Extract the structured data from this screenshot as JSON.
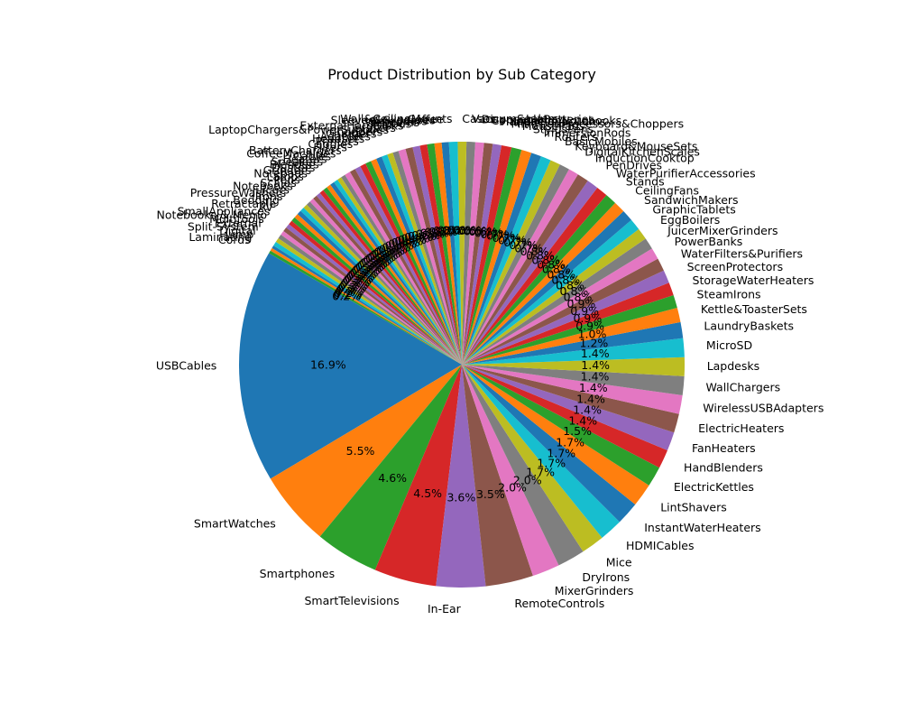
{
  "chart_data": {
    "type": "pie",
    "title": "Product Distribution by Sub Category",
    "start_angle_deg": 150,
    "counterclockwise": true,
    "pct_format": "%1.1f%%",
    "palette": [
      "#1f77b4",
      "#ff7f0e",
      "#2ca02c",
      "#d62728",
      "#9467bd",
      "#8c564b",
      "#e377c2",
      "#7f7f7f",
      "#bcbd22",
      "#17becf"
    ],
    "slices": [
      {
        "label": "USBCables",
        "value": 161
      },
      {
        "label": "SmartWatches",
        "value": 52
      },
      {
        "label": "Smartphones",
        "value": 44
      },
      {
        "label": "SmartTelevisions",
        "value": 43
      },
      {
        "label": "In-Ear",
        "value": 34
      },
      {
        "label": "RemoteControls",
        "value": 33
      },
      {
        "label": "MixerGrinders",
        "value": 19
      },
      {
        "label": "DryIrons",
        "value": 19
      },
      {
        "label": "Mice",
        "value": 16
      },
      {
        "label": "HDMICables",
        "value": 16
      },
      {
        "label": "InstantWaterHeaters",
        "value": 16
      },
      {
        "label": "LintShavers",
        "value": 16
      },
      {
        "label": "ElectricKettles",
        "value": 14
      },
      {
        "label": "HandBlenders",
        "value": 13
      },
      {
        "label": "FanHeaters",
        "value": 13
      },
      {
        "label": "ElectricHeaters",
        "value": 13
      },
      {
        "label": "WirelessUSBAdapters",
        "value": 13
      },
      {
        "label": "WallChargers",
        "value": 13
      },
      {
        "label": "Lapdesks",
        "value": 13
      },
      {
        "label": "MicroSD",
        "value": 13
      },
      {
        "label": "LaundryBaskets",
        "value": 11
      },
      {
        "label": "Kettle&ToasterSets",
        "value": 10
      },
      {
        "label": "SteamIrons",
        "value": 9
      },
      {
        "label": "StorageWaterHeaters",
        "value": 9
      },
      {
        "label": "ScreenProtectors",
        "value": 9
      },
      {
        "label": "WaterFilters&Purifiers",
        "value": 9
      },
      {
        "label": "PowerBanks",
        "value": 8
      },
      {
        "label": "JuicerMixerGrinders",
        "value": 8
      },
      {
        "label": "EggBoilers",
        "value": 8
      },
      {
        "label": "GraphicTablets",
        "value": 8
      },
      {
        "label": "SandwichMakers",
        "value": 8
      },
      {
        "label": "CeilingFans",
        "value": 8
      },
      {
        "label": "Stands",
        "value": 8
      },
      {
        "label": "WaterPurifierAccessories",
        "value": 8
      },
      {
        "label": "PenDrives",
        "value": 8
      },
      {
        "label": "InductionCooktop",
        "value": 8
      },
      {
        "label": "DigitalKitchenScales",
        "value": 7
      },
      {
        "label": "Keyboard&MouseSets",
        "value": 7
      },
      {
        "label": "BasicMobiles",
        "value": 7
      },
      {
        "label": "Routers",
        "value": 7
      },
      {
        "label": "ImmersionRods",
        "value": 7
      },
      {
        "label": "StylusPens",
        "value": 7
      },
      {
        "label": "MousePads",
        "value": 7
      },
      {
        "label": "MiniFoodProcessors&Choppers",
        "value": 7
      },
      {
        "label": "HandheldVacuums",
        "value": 6
      },
      {
        "label": "CompositionNotebooks",
        "value": 6
      },
      {
        "label": "DisposableBatteries",
        "value": 6
      },
      {
        "label": "VacuumSealers",
        "value": 6
      },
      {
        "label": "Cases",
        "value": 6
      },
      {
        "label": "Wall&CeilingMounts",
        "value": 6
      },
      {
        "label": "Coffee",
        "value": 5
      },
      {
        "label": "Sleeves&Slipcases",
        "value": 5
      },
      {
        "label": "Shredders",
        "value": 5
      },
      {
        "label": "Webcams",
        "value": 5
      },
      {
        "label": "Tripods",
        "value": 5
      },
      {
        "label": "ExternalHardDisks",
        "value": 5
      },
      {
        "label": "Erasers",
        "value": 5
      },
      {
        "label": "LaptopChargers&PowerSupplies",
        "value": 4
      },
      {
        "label": "Choppers",
        "value": 4
      },
      {
        "label": "Chargers",
        "value": 4
      },
      {
        "label": "Adapters",
        "value": 4
      },
      {
        "label": "Headsets",
        "value": 4
      },
      {
        "label": "Printers",
        "value": 4
      },
      {
        "label": "Caddies",
        "value": 4
      },
      {
        "label": "Filters",
        "value": 4
      },
      {
        "label": "BatteryChargers",
        "value": 4
      },
      {
        "label": "CoffeeMachines",
        "value": 4
      },
      {
        "label": "Cables",
        "value": 3
      },
      {
        "label": "Heaters",
        "value": 3
      },
      {
        "label": "Speakers",
        "value": 3
      },
      {
        "label": "Blenders",
        "value": 3
      },
      {
        "label": "Dusters",
        "value": 3
      },
      {
        "label": "Grinders",
        "value": 3
      },
      {
        "label": "Notepads",
        "value": 3
      },
      {
        "label": "Lamps",
        "value": 3
      },
      {
        "label": "Pens",
        "value": 3
      },
      {
        "label": "Scales",
        "value": 3
      },
      {
        "label": "Notebooks",
        "value": 3
      },
      {
        "label": "Juicers",
        "value": 3
      },
      {
        "label": "PressureWashers",
        "value": 3
      },
      {
        "label": "Irons",
        "value": 3
      },
      {
        "label": "Bedding",
        "value": 3
      },
      {
        "label": "Retractable",
        "value": 3
      },
      {
        "label": "AV",
        "value": 3
      },
      {
        "label": "SmallAppliances",
        "value": 3
      },
      {
        "label": "Notebooks & Memo",
        "value": 3
      },
      {
        "label": "Multitools",
        "value": 3
      },
      {
        "label": "External",
        "value": 3
      },
      {
        "label": "Split-System",
        "value": 3
      },
      {
        "label": "Digital",
        "value": 3
      },
      {
        "label": "Jump",
        "value": 2
      },
      {
        "label": "Laminating",
        "value": 2
      },
      {
        "label": "Cords",
        "value": 2
      }
    ]
  }
}
